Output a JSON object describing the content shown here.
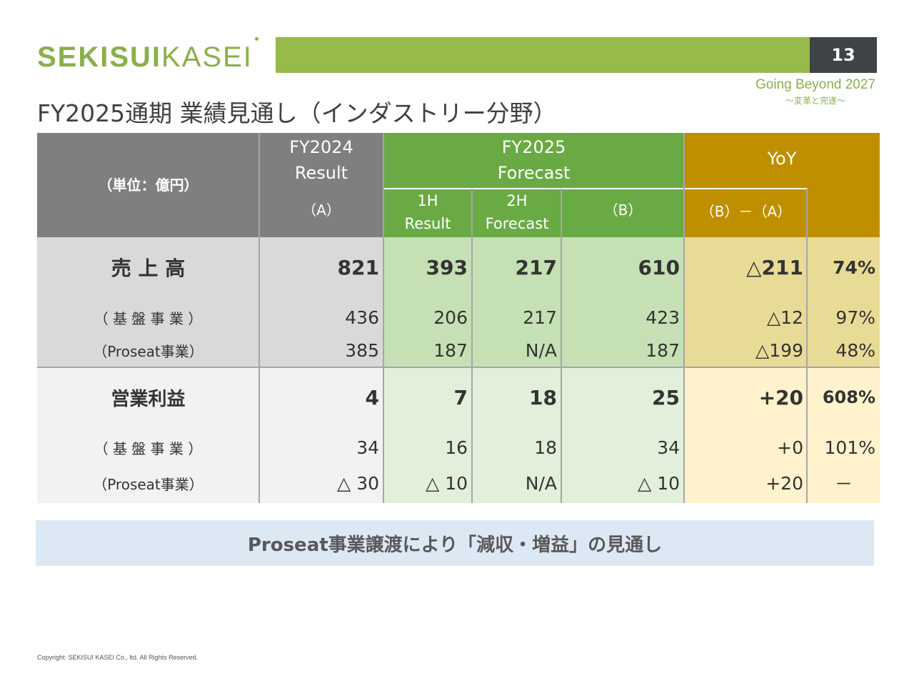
{
  "logo": {
    "part1": "SEKISUI",
    "part2": "KASEI"
  },
  "page_number": "13",
  "slogan": {
    "line1": "Going Beyond 2027",
    "line2": "～変革と完遂～"
  },
  "title": "FY2025通期 業績見通し（インダストリー分野）",
  "table": {
    "header": {
      "unit": "（単位：億円）",
      "fy2024_l1": "FY2024",
      "fy2024_l2": "Result",
      "fy2024_a": "（A）",
      "fy2025_l1": "FY2025",
      "fy2025_l2": "Forecast",
      "h1_l1": "1H",
      "h1_l2": "Result",
      "h2_l1": "2H",
      "h2_l2": "Forecast",
      "fy2025_b": "（B）",
      "yoy": "YoY",
      "yoy_diff": "（B）－（A）"
    },
    "rows": [
      {
        "label": "売 上 高",
        "fy2024": "821",
        "h1": "393",
        "h2": "217",
        "fy2025": "610",
        "diff": "△211",
        "pct": "74%"
      },
      {
        "label": "（ 基 盤 事 業 ）",
        "fy2024": "436",
        "h1": "206",
        "h2": "217",
        "fy2025": "423",
        "diff": "△12",
        "pct": "97%"
      },
      {
        "label": "（Proseat事業）",
        "fy2024": "385",
        "h1": "187",
        "h2": "N/A",
        "fy2025": "187",
        "diff": "△199",
        "pct": "48%"
      },
      {
        "label": "営業利益",
        "fy2024": "4",
        "h1": "7",
        "h2": "18",
        "fy2025": "25",
        "diff": "+20",
        "pct": "608%"
      },
      {
        "label": "（ 基 盤 事 業 ）",
        "fy2024": "34",
        "h1": "16",
        "h2": "18",
        "fy2025": "34",
        "diff": "+0",
        "pct": "101%"
      },
      {
        "label": "（Proseat事業）",
        "fy2024": "△ 30",
        "h1": "△ 10",
        "h2": "N/A",
        "fy2025": "△ 10",
        "diff": "+20",
        "pct": "－"
      }
    ]
  },
  "note": "Proseat事業譲渡により「減収・増益」の見通し",
  "copyright": "Copyright: SEKISUI KASEI Co., ltd. All Rights Reserved."
}
